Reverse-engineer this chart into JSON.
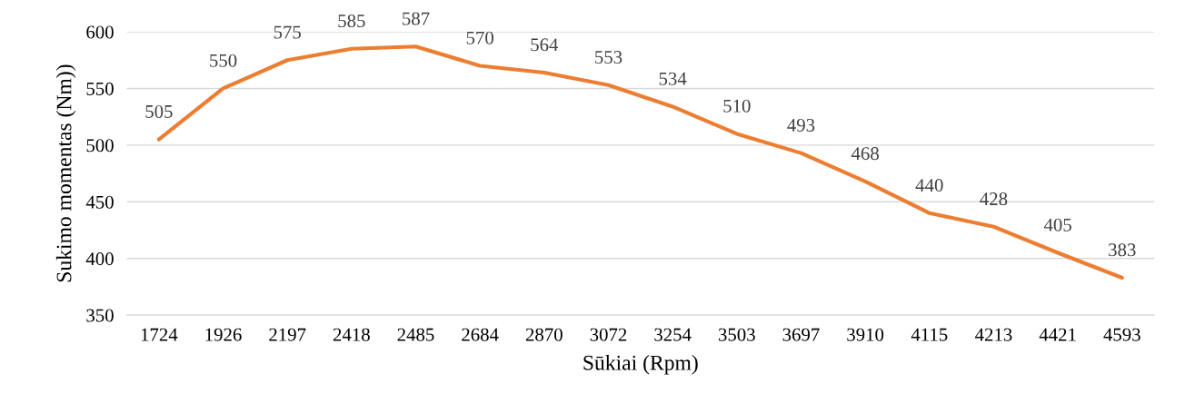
{
  "chart_data": {
    "type": "line",
    "xlabel": "Sūkiai (Rpm)",
    "ylabel": "Sukimo momentas (Nm))",
    "categories": [
      "1724",
      "1926",
      "2197",
      "2418",
      "2485",
      "2684",
      "2870",
      "3072",
      "3254",
      "3503",
      "3697",
      "3910",
      "4115",
      "4213",
      "4421",
      "4593"
    ],
    "series": [
      {
        "color": "#ed7d31",
        "values": [
          505,
          550,
          575,
          585,
          587,
          570,
          564,
          553,
          534,
          510,
          493,
          468,
          440,
          428,
          405,
          383
        ]
      }
    ],
    "ylim": [
      350,
      600
    ],
    "yticks": [
      350,
      400,
      450,
      500,
      550,
      600
    ],
    "grid": "y",
    "data_labels": true,
    "legend": false,
    "marker": "none",
    "line_style": "solid"
  }
}
